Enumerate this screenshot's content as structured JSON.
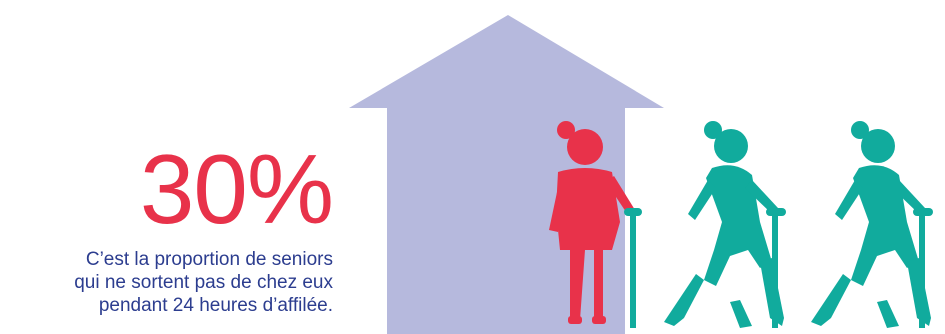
{
  "stat": {
    "value": "30%",
    "caption_lines": [
      "C’est la proportion de seniors",
      "qui ne sortent pas de chez eux",
      "pendant 24 heures d’affilée."
    ]
  },
  "colors": {
    "accent_red": "#e8324a",
    "text_blue": "#2c3d8f",
    "house_lavender": "#b6b9dd",
    "teal": "#11ab9d"
  },
  "icons": [
    "house-icon",
    "senior-woman-indoors-icon",
    "senior-walker-with-cane-icon"
  ]
}
